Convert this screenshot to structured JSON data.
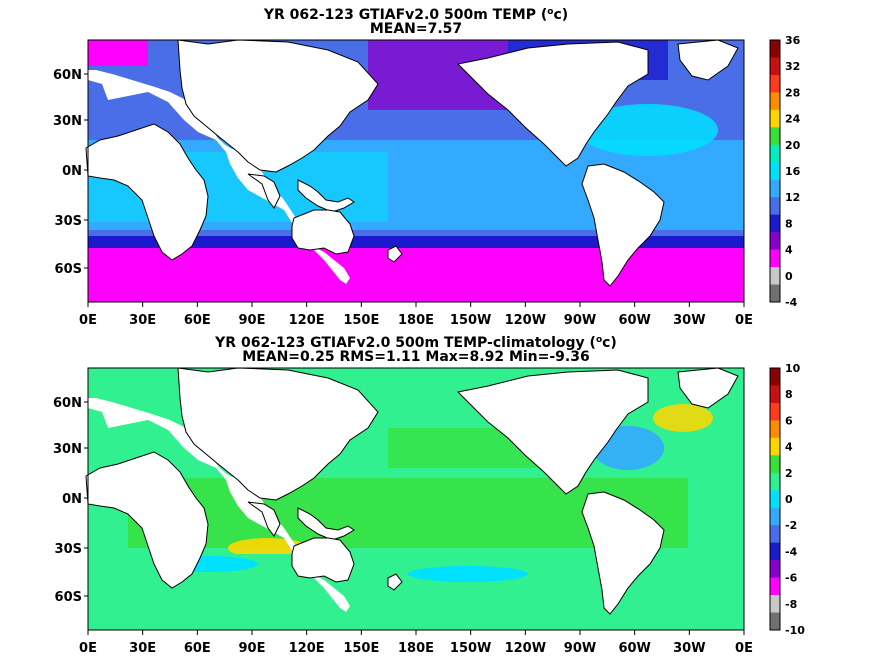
{
  "panels": [
    {
      "title_prefix": "YR 062-123 GTIAFv2.0 500m TEMP (",
      "title_unit_sup": "o",
      "title_unit_rest": "c)",
      "stats": "MEAN=7.57",
      "colorbar_labels": [
        "36",
        "32",
        "28",
        "24",
        "20",
        "16",
        "12",
        "8",
        "4",
        "0",
        "-4"
      ],
      "colorbar_colors": [
        "#8b0000",
        "#c81010",
        "#ff3a1e",
        "#ff8c00",
        "#ffd700",
        "#38e038",
        "#00f0c0",
        "#00e0ff",
        "#33aaff",
        "#4a6ee8",
        "#1a1acc",
        "#8800cc",
        "#ff00ff",
        "#c8c8c8",
        "#707070"
      ]
    },
    {
      "title_prefix": "YR 062-123 GTIAFv2.0 500m TEMP-climatology (",
      "title_unit_sup": "o",
      "title_unit_rest": "c)",
      "stats": "MEAN=0.25   RMS=1.11   Max=8.92   Min=-9.36",
      "colorbar_labels": [
        "10",
        "8",
        "6",
        "4",
        "2",
        "0",
        "-2",
        "-4",
        "-6",
        "-8",
        "-10"
      ],
      "colorbar_colors": [
        "#8b0000",
        "#c81010",
        "#ff3a1e",
        "#ff8c00",
        "#ffd700",
        "#38e038",
        "#30f090",
        "#00e0ff",
        "#33aaff",
        "#4a6ee8",
        "#1a1acc",
        "#8800cc",
        "#ff00ff",
        "#c8c8c8",
        "#707070"
      ]
    }
  ],
  "lon_labels": [
    "0E",
    "30E",
    "60E",
    "90E",
    "120E",
    "150E",
    "180E",
    "150W",
    "120W",
    "90W",
    "60W",
    "30W",
    "0E"
  ],
  "lat_labels": [
    "60N",
    "30N",
    "0N",
    "30S",
    "60S"
  ]
}
